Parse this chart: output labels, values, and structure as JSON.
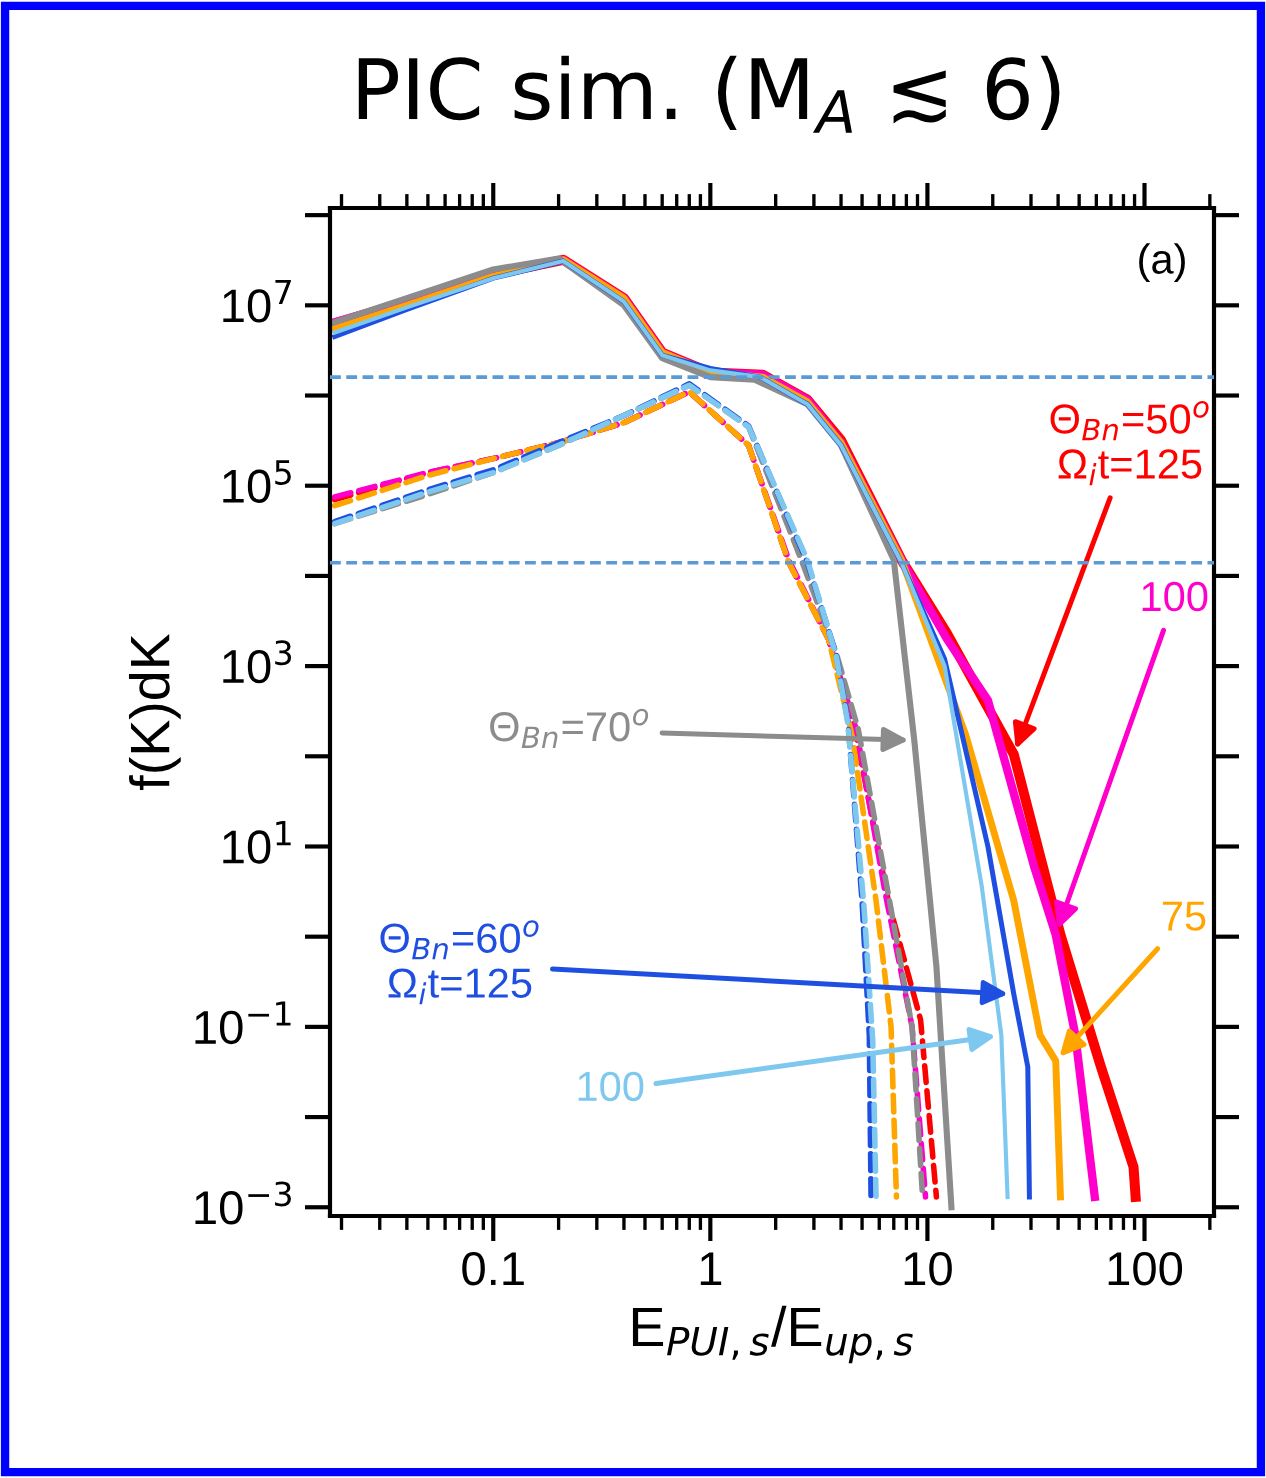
{
  "chart_data": {
    "type": "line",
    "title": "PIC sim. (M$_{A}$ ≲ 6)",
    "xlabel": "E$_{PUI,s}$/E$_{up,s}$",
    "ylabel": "f(K)dK",
    "log": "xy",
    "grid": false,
    "legend": false,
    "marker": "none",
    "xlim": [
      0.0177,
      209
    ],
    "ylim": [
      0.0008,
      120000000
    ],
    "xticks": [
      {
        "value": 0.1,
        "label": "0.1"
      },
      1,
      10,
      100
    ],
    "yticks": [
      {
        "value": 100000000,
        "label": null
      },
      {
        "value": 10000000,
        "label": "10$^{7}$"
      },
      {
        "value": 1000000,
        "label": null
      },
      {
        "value": 100000,
        "label": "10$^{5}$"
      },
      {
        "value": 10000,
        "label": null
      },
      {
        "value": 1000,
        "label": "10$^{3}$"
      },
      {
        "value": 100,
        "label": null
      },
      {
        "value": 10,
        "label": "10$^{1}$"
      },
      {
        "value": 1,
        "label": null
      },
      {
        "value": 0.1,
        "label": "10$^{−1}$"
      },
      {
        "value": 0.01,
        "label": null
      },
      {
        "value": 0.001,
        "label": "10$^{−3}$"
      }
    ],
    "ref_lines": [
      {
        "axis": "y",
        "value": 1600000,
        "color": "#5b9bd5",
        "line_style": "dashed"
      },
      {
        "axis": "y",
        "value": 14000,
        "color": "#5b9bd5",
        "line_style": "dashed"
      }
    ],
    "annotations": [
      "(a)"
    ],
    "series": [
      {
        "name": "Θ$_{Bn}$=50$^{o}$\nΩ$_{i}$t=125",
        "color": "#ff0000",
        "line_style": "solid",
        "x": [
          0.0186,
          0.04,
          0.1,
          0.21,
          0.4,
          0.6,
          1,
          1.74,
          2.8,
          4,
          7.6,
          12.3,
          25,
          41,
          63,
          89,
          91
        ],
        "values": [
          6300000,
          11000000,
          22000000,
          32000000,
          12000000,
          3000000,
          1800000,
          1700000,
          900000,
          320000,
          15000,
          2300,
          105,
          1.05,
          0.036,
          0.0028,
          0.0013
        ]
      },
      {
        "name": "100",
        "color": "#ff00cc",
        "line_style": "solid",
        "x": [
          0.0186,
          0.04,
          0.1,
          0.21,
          0.4,
          0.6,
          1,
          1.74,
          2.8,
          4,
          7.6,
          12.3,
          19,
          31,
          39,
          48,
          59
        ],
        "values": [
          6500000,
          11000000,
          22000000,
          32000000,
          12000000,
          3000000,
          1800000,
          1700000,
          900000,
          300000,
          15000,
          2000,
          417,
          6,
          1.05,
          0.081,
          0.0013
        ]
      },
      {
        "name": "75",
        "color": "#ffa500",
        "line_style": "solid",
        "x": [
          0.0186,
          0.04,
          0.1,
          0.21,
          0.4,
          0.6,
          1,
          1.74,
          2.8,
          4,
          7.6,
          15,
          25,
          33,
          39,
          41
        ],
        "values": [
          5500000,
          10000000,
          21000000,
          32000000,
          12000000,
          3000000,
          1800000,
          1600000,
          850000,
          300000,
          15000,
          174,
          2.5,
          0.081,
          0.042,
          0.0013
        ]
      },
      {
        "name": "Θ$_{Bn}$=70$^{o}$",
        "color": "#8c8c8c",
        "line_style": "solid",
        "x": [
          0.0186,
          0.04,
          0.1,
          0.2,
          0.4,
          0.6,
          1,
          1.6,
          2.8,
          4,
          7,
          8.7,
          11,
          12.9
        ],
        "values": [
          6500000,
          12000000,
          25000000,
          33000000,
          10000000,
          2600000,
          1600000,
          1500000,
          800000,
          280000,
          15000,
          150,
          0.47,
          0.001
        ]
      },
      {
        "name": "Θ$_{Bn}$=60$^{o}$\nΩ$_{i}$t=125",
        "color": "#1f4fe0",
        "line_style": "solid",
        "x": [
          0.0186,
          0.04,
          0.1,
          0.21,
          0.4,
          0.6,
          1,
          1.7,
          2.8,
          4,
          7.6,
          12,
          19,
          25,
          29,
          29.5
        ],
        "values": [
          4500000,
          9000000,
          20000000,
          31000000,
          11000000,
          2800000,
          2000000,
          1600000,
          800000,
          280000,
          14000,
          1200,
          10,
          0.23,
          0.036,
          0.0013
        ]
      },
      {
        "name": "100",
        "color": "#7ec8f0",
        "line_style": "solid",
        "x": [
          0.0186,
          0.04,
          0.1,
          0.21,
          0.4,
          0.6,
          1,
          1.7,
          2.8,
          4,
          7.6,
          12,
          17.8,
          21.9,
          23.4
        ],
        "values": [
          5000000,
          9500000,
          20000000,
          31000000,
          11000000,
          2800000,
          1900000,
          1600000,
          800000,
          280000,
          14000,
          1000,
          3.6,
          0.081,
          0.0013
        ]
      },
      {
        "color": "#ff0000",
        "line_style": "dashed",
        "x": [
          0.0186,
          0.05,
          0.1,
          0.2,
          0.4,
          0.8,
          1.5,
          2.3,
          3.5,
          4.7,
          6.6,
          9.3,
          11
        ],
        "values": [
          70000,
          140000,
          200000,
          300000,
          500000,
          1100000,
          280000,
          14000,
          2000,
          170,
          2.5,
          0.12,
          0.0013
        ]
      },
      {
        "color": "#ff00cc",
        "line_style": "dashed",
        "x": [
          0.0186,
          0.05,
          0.1,
          0.2,
          0.4,
          0.8,
          1.5,
          2.3,
          3.5,
          4.7,
          6.4,
          8.5,
          9.8
        ],
        "values": [
          75000,
          140000,
          200000,
          300000,
          500000,
          1100000,
          280000,
          15000,
          2000,
          200,
          3,
          0.1,
          0.0013
        ]
      },
      {
        "color": "#ffa500",
        "line_style": "dashed",
        "x": [
          0.0186,
          0.05,
          0.1,
          0.2,
          0.4,
          0.8,
          1.5,
          2.3,
          3.5,
          4.5,
          5.8,
          6.8,
          7.2
        ],
        "values": [
          60000,
          130000,
          200000,
          300000,
          500000,
          1100000,
          280000,
          14000,
          2000,
          170,
          2.5,
          0.1,
          0.0013
        ]
      },
      {
        "color": "#8c8c8c",
        "line_style": "dashed",
        "x": [
          0.0186,
          0.05,
          0.1,
          0.2,
          0.4,
          0.8,
          1.5,
          2.6,
          3.8,
          4.8,
          6.6,
          8.5,
          9.5
        ],
        "values": [
          38000,
          80000,
          140000,
          280000,
          600000,
          1300000,
          450000,
          16000,
          1400,
          200,
          3,
          0.1,
          0.0013
        ]
      },
      {
        "color": "#1f4fe0",
        "line_style": "dashed",
        "x": [
          0.0186,
          0.05,
          0.1,
          0.2,
          0.4,
          0.8,
          1.5,
          2.8,
          3.8,
          4.3,
          5,
          5.4,
          5.5
        ],
        "values": [
          40000,
          90000,
          150000,
          300000,
          600000,
          1350000,
          460000,
          14000,
          1350,
          250,
          2.5,
          0.08,
          0.0013
        ]
      },
      {
        "color": "#7ec8f0",
        "line_style": "dashed",
        "x": [
          0.0186,
          0.05,
          0.1,
          0.2,
          0.4,
          0.8,
          1.5,
          2.8,
          3.8,
          4.3,
          5.1,
          5.6,
          5.8
        ],
        "values": [
          38000,
          85000,
          140000,
          280000,
          600000,
          1300000,
          450000,
          15000,
          1300,
          230,
          2.2,
          0.07,
          0.0013
        ]
      }
    ]
  }
}
